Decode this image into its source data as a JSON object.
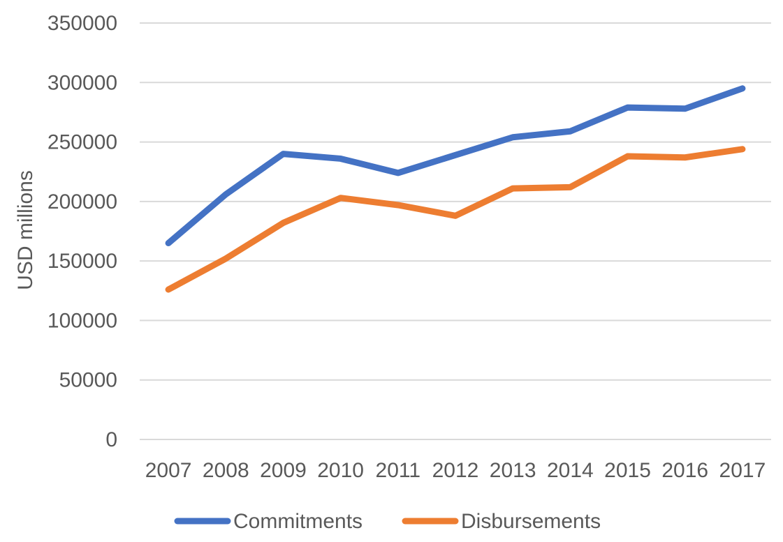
{
  "chart_data": {
    "type": "line",
    "title": "",
    "xlabel": "",
    "ylabel": "USD millions",
    "ylim": [
      0,
      350000
    ],
    "yticks": [
      "0",
      "50000",
      "100000",
      "150000",
      "200000",
      "250000",
      "300000",
      "350000"
    ],
    "categories": [
      "2007",
      "2008",
      "2009",
      "2010",
      "2011",
      "2012",
      "2013",
      "2014",
      "2015",
      "2016",
      "2017"
    ],
    "grid": true,
    "legend_position": "bottom",
    "series": [
      {
        "name": "Commitments",
        "color": "#4472c4",
        "values": [
          165000,
          206000,
          240000,
          236000,
          224000,
          239000,
          254000,
          259000,
          279000,
          278000,
          295000
        ]
      },
      {
        "name": "Disbursements",
        "color": "#ed7d31",
        "values": [
          126000,
          152000,
          182000,
          203000,
          197000,
          188000,
          211000,
          212000,
          238000,
          237000,
          244000
        ]
      }
    ]
  }
}
